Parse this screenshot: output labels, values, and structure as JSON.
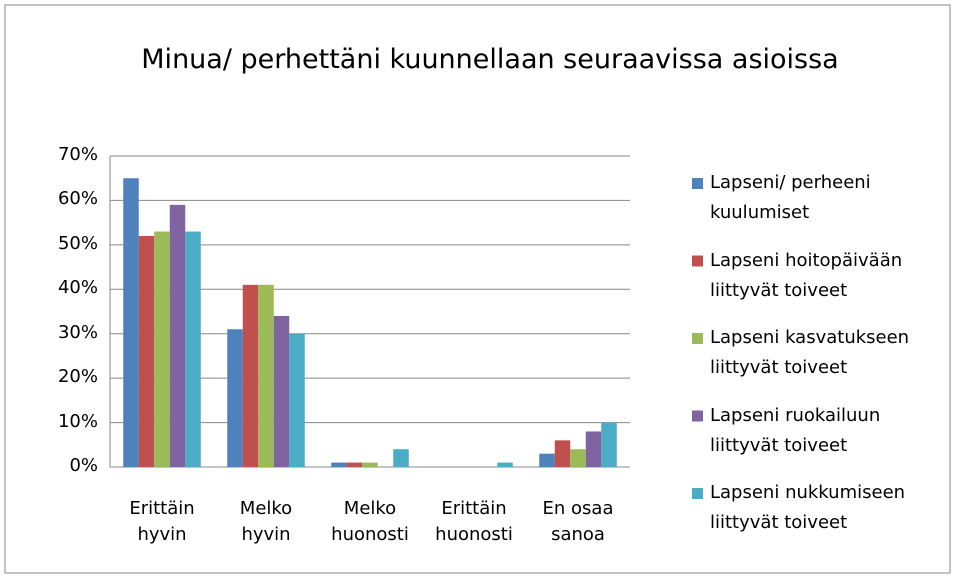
{
  "chart_data": {
    "type": "bar",
    "title": "Minua/ perhettäni kuunnellaan seuraavissa asioissa",
    "categories": [
      "Erittäin hyvin",
      "Melko hyvin",
      "Melko huonosti",
      "Erittäin huonosti",
      "En osaa sanoa"
    ],
    "series": [
      {
        "name": "Lapseni/ perheeni kuulumiset",
        "color": "#4f81bd",
        "values": [
          65,
          31,
          1,
          0,
          3
        ]
      },
      {
        "name": "Lapseni hoitopäivään liittyvät toiveet",
        "color": "#c0504d",
        "values": [
          52,
          41,
          1,
          0,
          6
        ]
      },
      {
        "name": "Lapseni kasvatukseen liittyvät toiveet",
        "color": "#9bbb59",
        "values": [
          53,
          41,
          1,
          0,
          4
        ]
      },
      {
        "name": "Lapseni ruokailuun liittyvät toiveet",
        "color": "#8064a2",
        "values": [
          59,
          34,
          0,
          0,
          8
        ]
      },
      {
        "name": "Lapseni nukkumiseen liittyvät toiveet",
        "color": "#4bacc6",
        "values": [
          53,
          30,
          4,
          1,
          10
        ]
      }
    ],
    "ylim": [
      0,
      70
    ],
    "yticks": [
      {
        "value": 0,
        "label": "0%"
      },
      {
        "value": 10,
        "label": "10%"
      },
      {
        "value": 20,
        "label": "20%"
      },
      {
        "value": 30,
        "label": "30%"
      },
      {
        "value": 40,
        "label": "40%"
      },
      {
        "value": 50,
        "label": "50%"
      },
      {
        "value": 60,
        "label": "60%"
      },
      {
        "value": 70,
        "label": "70%"
      }
    ],
    "grid": true,
    "legend": "right"
  }
}
